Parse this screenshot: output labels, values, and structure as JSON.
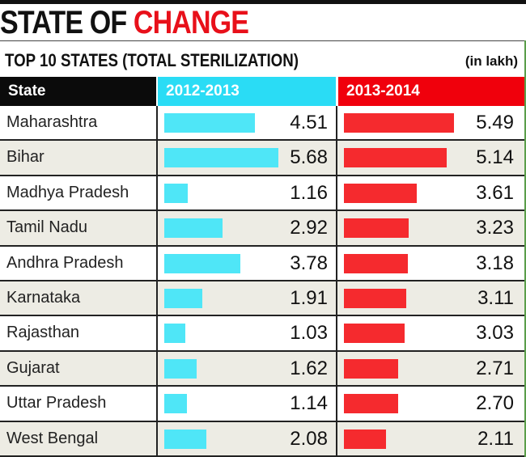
{
  "title_black": "STATE OF ",
  "title_red": "CHANGE",
  "chart_data": {
    "type": "table",
    "title": "TOP 10 STATES (TOTAL STERILIZATION)",
    "unit": "(in lakh)",
    "columns": [
      "State",
      "2012-2013",
      "2013-2014"
    ],
    "colors": {
      "2012-2013": "#4fe6f7",
      "2013-2014": "#f52a2e"
    },
    "categories": [
      "Maharashtra",
      "Bihar",
      "Madhya Pradesh",
      "Tamil Nadu",
      "Andhra Pradesh",
      "Karnataka",
      "Rajasthan",
      "Gujarat",
      "Uttar Pradesh",
      "West Bengal"
    ],
    "series": [
      {
        "name": "2012-2013",
        "values": [
          "4.51",
          "5.68",
          "1.16",
          "2.92",
          "3.78",
          "1.91",
          "1.03",
          "1.62",
          "1.14",
          "2.08"
        ]
      },
      {
        "name": "2013-2014",
        "values": [
          "5.49",
          "5.14",
          "3.61",
          "3.23",
          "3.18",
          "3.11",
          "3.03",
          "2.71",
          "2.70",
          "2.11"
        ]
      }
    ]
  }
}
